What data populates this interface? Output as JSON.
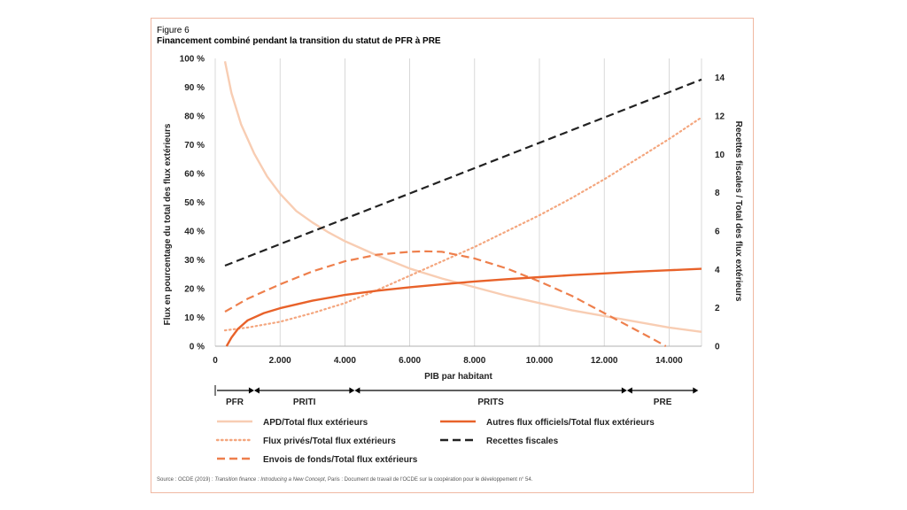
{
  "figure": {
    "number": "Figure 6",
    "title": "Financement combiné pendant la transition du statut de PFR à PRE",
    "source_prefix": "Source : OCDE (2019) : ",
    "source_italic": "Transition finance : Introducing a New Concept",
    "source_suffix": ", Paris : Document de travail de l'OCDE sur la coopération pour le développement n° 54."
  },
  "chart_data": {
    "type": "line",
    "title": "Financement combiné pendant la transition du statut de PFR à PRE",
    "xlabel": "PIB par habitant",
    "ylabel": "Flux en pourcentage du total des flux extérieurs",
    "y2label": "Recettes fiscales / Total des flux extérieurs",
    "xlim": [
      0,
      15000
    ],
    "ylim": [
      0,
      100
    ],
    "y2lim": [
      0,
      15
    ],
    "x_ticks": [
      0,
      2000,
      4000,
      6000,
      8000,
      10000,
      12000,
      14000
    ],
    "x_tick_labels": [
      "0",
      "2.000",
      "4.000",
      "6.000",
      "8.000",
      "10.000",
      "12.000",
      "14.000"
    ],
    "y_ticks": [
      0,
      10,
      20,
      30,
      40,
      50,
      60,
      70,
      80,
      90,
      100
    ],
    "y_tick_labels": [
      "0 %",
      "10 %",
      "20 %",
      "30 %",
      "40 %",
      "50 %",
      "60 %",
      "70 %",
      "80 %",
      "90 %",
      "100 %"
    ],
    "y2_ticks": [
      0,
      2,
      4,
      6,
      8,
      10,
      12,
      14
    ],
    "y2_tick_labels": [
      "0",
      "2",
      "4",
      "6",
      "8",
      "10",
      "12",
      "14"
    ],
    "grid": "vertical",
    "legend_position": "bottom",
    "stages": [
      {
        "label": "PFR",
        "from": 0,
        "to": 1200
      },
      {
        "label": "PRITI",
        "from": 1200,
        "to": 4300
      },
      {
        "label": "PRITS",
        "from": 4300,
        "to": 12700
      },
      {
        "label": "PRE",
        "from": 12700,
        "to": 14900
      }
    ],
    "series": [
      {
        "name": "APD/Total flux extérieurs",
        "axis": "left",
        "style": "solid",
        "color": "#f8cdb3",
        "x": [
          300,
          500,
          800,
          1200,
          1600,
          2000,
          2500,
          3000,
          3500,
          4000,
          5000,
          6000,
          7000,
          8000,
          9000,
          10000,
          11000,
          12000,
          13000,
          14000,
          15000
        ],
        "y": [
          99,
          88,
          77,
          67,
          59,
          53,
          47,
          43,
          39.5,
          36.5,
          31.5,
          27,
          23.5,
          20.5,
          17.5,
          15,
          12.5,
          10.5,
          8.5,
          6.5,
          5
        ]
      },
      {
        "name": "Autres flux officiels/Total flux extérieurs",
        "axis": "left",
        "style": "solid",
        "color": "#e8622a",
        "x": [
          350,
          500,
          700,
          1000,
          1500,
          2000,
          3000,
          4000,
          5000,
          6000,
          7000,
          8000,
          9000,
          10000,
          11000,
          12000,
          13000,
          14000,
          15000
        ],
        "y": [
          0,
          3,
          6,
          9,
          11.5,
          13.2,
          15.8,
          17.8,
          19.3,
          20.5,
          21.5,
          22.5,
          23.3,
          24,
          24.7,
          25.3,
          25.9,
          26.4,
          26.9
        ]
      },
      {
        "name": "Flux privés/Total flux extérieurs",
        "axis": "left",
        "style": "dotted",
        "color": "#f4a67e",
        "x": [
          300,
          1000,
          2000,
          3000,
          4000,
          5000,
          6000,
          7000,
          8000,
          9000,
          10000,
          11000,
          12000,
          13000,
          14000,
          15000
        ],
        "y": [
          5.5,
          6.5,
          8.5,
          11.5,
          15,
          19.5,
          24.5,
          29.5,
          34.5,
          40,
          45.5,
          51.5,
          58,
          65,
          72,
          79.5
        ]
      },
      {
        "name": "Envois de fonds/Total flux extérieurs",
        "axis": "left",
        "style": "dashed",
        "color": "#ee7f4c",
        "x": [
          300,
          1000,
          2000,
          3000,
          4000,
          5000,
          6000,
          6500,
          7000,
          8000,
          9000,
          10000,
          11000,
          12000,
          12500,
          13000,
          13500,
          13900
        ],
        "y": [
          12,
          16.5,
          21.5,
          26,
          29.5,
          31.8,
          32.8,
          33,
          32.8,
          30.5,
          27,
          22.5,
          17.5,
          11.5,
          8.5,
          5.5,
          2.5,
          0
        ]
      },
      {
        "name": "Recettes fiscales",
        "axis": "right",
        "style": "dashed",
        "color": "#222222",
        "x": [
          300,
          15000
        ],
        "y": [
          4.2,
          13.9
        ]
      }
    ],
    "legend": [
      {
        "label": "APD/Total flux extérieurs",
        "style": "solid",
        "color": "#f8cdb3"
      },
      {
        "label": "Autres flux officiels/Total flux extérieurs",
        "style": "solid",
        "color": "#e8622a"
      },
      {
        "label": "Flux privés/Total flux extérieurs",
        "style": "dotted",
        "color": "#f4a67e"
      },
      {
        "label": "Recettes fiscales",
        "style": "dashed",
        "color": "#222222"
      },
      {
        "label": "Envois de fonds/Total flux extérieurs",
        "style": "dashed",
        "color": "#ee7f4c"
      }
    ]
  }
}
